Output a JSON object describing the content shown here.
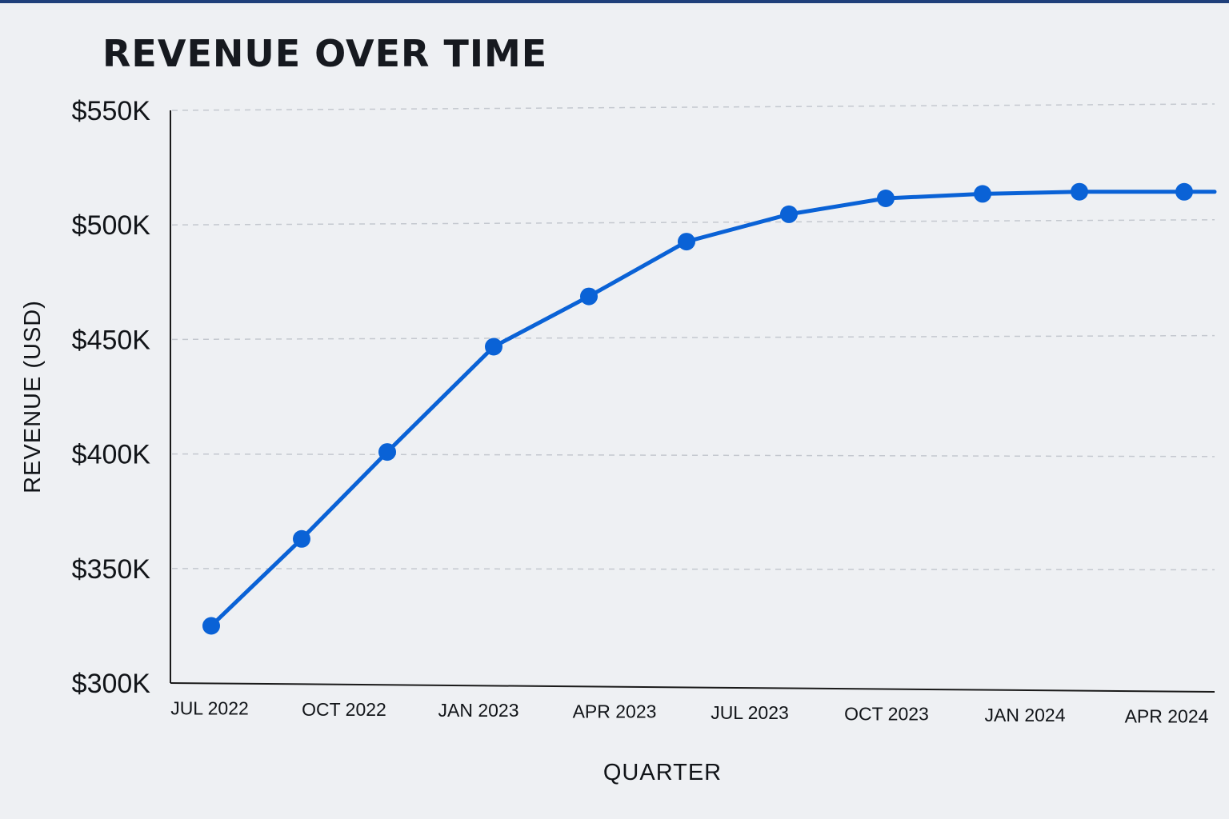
{
  "chart_data": {
    "type": "line",
    "title": "REVENUE OVER TIME",
    "xlabel": "QUARTER",
    "ylabel": "REVENUE (USD)",
    "ylim": [
      300000,
      550000
    ],
    "y_ticks": [
      {
        "value": 550000,
        "label": "$550K"
      },
      {
        "value": 500000,
        "label": "$500K"
      },
      {
        "value": 450000,
        "label": "$450K"
      },
      {
        "value": 400000,
        "label": "$400K"
      },
      {
        "value": 350000,
        "label": "$350K"
      },
      {
        "value": 300000,
        "label": "$300K"
      }
    ],
    "x_tick_labels": [
      "JUL 2022",
      "OCT 2022",
      "JAN 2023",
      "APR 2023",
      "JUL 2023",
      "OCT 2023",
      "JAN 2024",
      "APR 2024"
    ],
    "grid": true,
    "line_color": "#0a62d6",
    "series": [
      {
        "values": [
          325000,
          363000,
          401000,
          447000,
          469000,
          493000,
          505000,
          512000,
          514000,
          515000,
          515000
        ]
      }
    ]
  }
}
